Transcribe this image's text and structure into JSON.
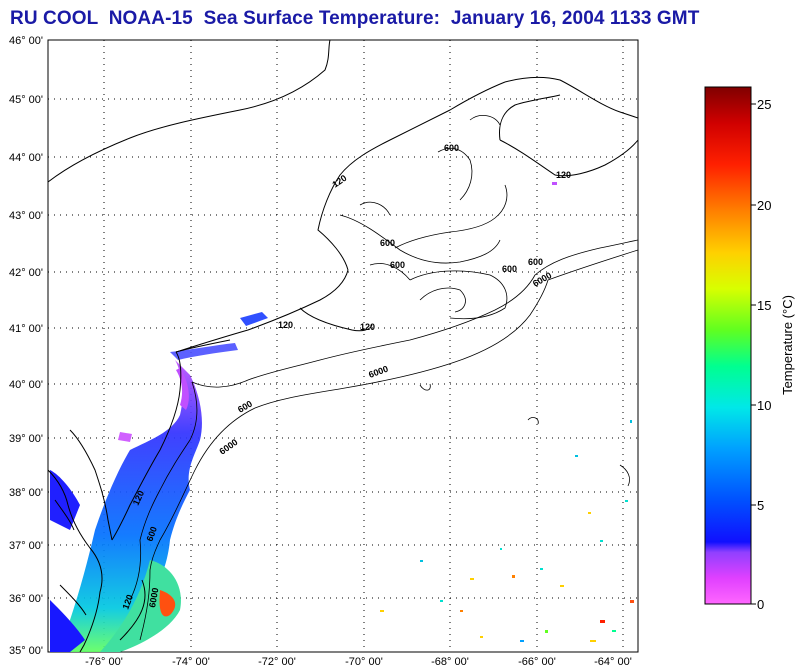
{
  "title": "RU COOL  NOAA-15  Sea Surface Temperature:  January 16, 2004 1133 GMT",
  "map": {
    "lat_labels": [
      "46° 00'",
      "45° 00'",
      "44° 00'",
      "43° 00'",
      "42° 00'",
      "41° 00'",
      "40° 00'",
      "39° 00'",
      "38° 00'",
      "37° 00'",
      "36° 00'",
      "35° 00'"
    ],
    "lon_labels": [
      "-76° 00'",
      "-74° 00'",
      "-72° 00'",
      "-70° 00'",
      "-68° 00'",
      "-66° 00'",
      "-64° 00'"
    ],
    "isobath_labels": [
      {
        "text": "600",
        "name": "isobath-label-600-gulf-maine-north"
      },
      {
        "text": "600",
        "name": "isobath-label-600-gulf-maine-west"
      },
      {
        "text": "600",
        "name": "isobath-label-600-gulf-maine-center"
      },
      {
        "text": "600",
        "name": "isobath-label-600-georges-east"
      },
      {
        "text": "600",
        "name": "isobath-label-600-scotian"
      },
      {
        "text": "6000",
        "name": "isobath-label-6000-east"
      },
      {
        "text": "120",
        "name": "isobath-label-120-long-island"
      },
      {
        "text": "120",
        "name": "isobath-label-120-nantucket"
      },
      {
        "text": "6000",
        "name": "isobath-label-6000-slope"
      },
      {
        "text": "600",
        "name": "isobath-label-600-hudson"
      },
      {
        "text": "6000",
        "name": "isobath-label-6000-south"
      },
      {
        "text": "120",
        "name": "isobath-label-120-delmarva"
      },
      {
        "text": "600",
        "name": "isobath-label-600-virginia"
      },
      {
        "text": "6000",
        "name": "isobath-label-6000-hatteras"
      },
      {
        "text": "120",
        "name": "isobath-label-120-hatteras"
      },
      {
        "text": "120",
        "name": "isobath-label-120-nova-scotia"
      },
      {
        "text": "120",
        "name": "isobath-label-120-maine-coast"
      }
    ]
  },
  "colorbar": {
    "label": "Temperature (°C)",
    "ticks": [
      "0",
      "5",
      "10",
      "15",
      "20",
      "25"
    ],
    "range": [
      0,
      26
    ]
  },
  "colors": {
    "title": "#1a1aa6",
    "land_outline": "#000000"
  }
}
